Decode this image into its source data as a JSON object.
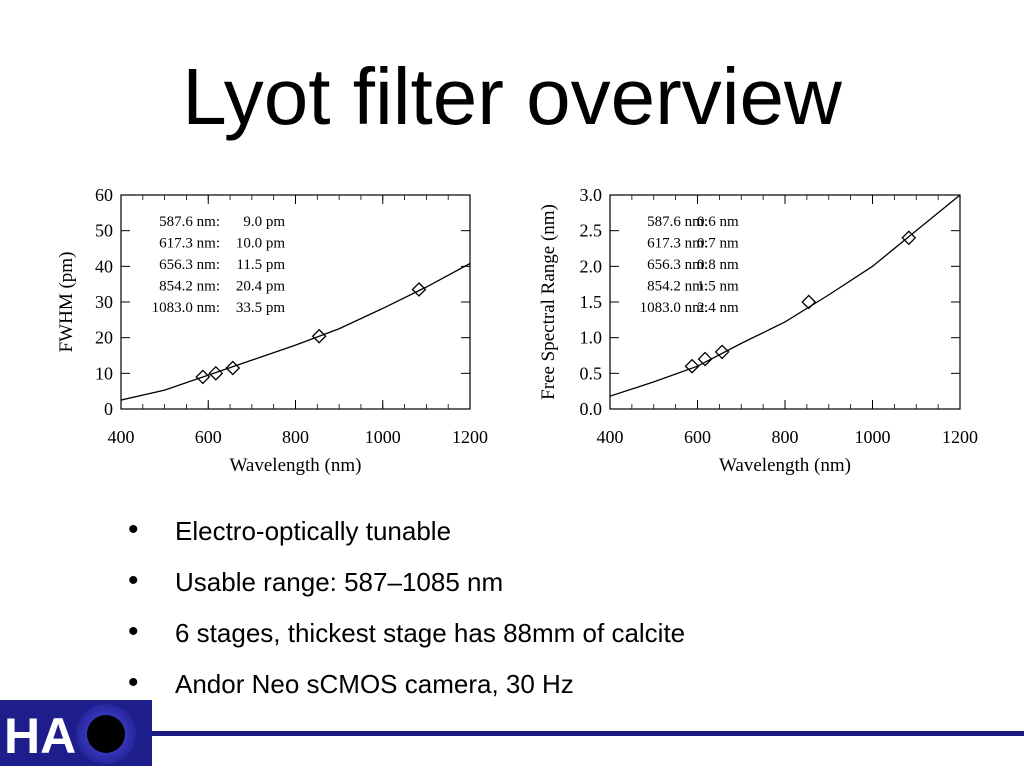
{
  "slide": {
    "title": "Lyot filter overview"
  },
  "bullets": [
    "Electro-optically tunable",
    "Usable range: 587–1085 nm",
    "6 stages, thickest stage has 88mm of calcite",
    "Andor Neo sCMOS camera, 30 Hz"
  ],
  "logo": {
    "text": "HAO",
    "colors": {
      "background": "#1d1d8c",
      "letters": "#ffffff",
      "disk": "#000000",
      "rule": "#1a1a80"
    }
  },
  "chart_data": [
    {
      "type": "scatter",
      "xlabel": "Wavelength (nm)",
      "ylabel": "FWHM (pm)",
      "xlim": [
        400,
        1200
      ],
      "ylim": [
        0,
        60
      ],
      "xticks": [
        400,
        600,
        800,
        1000,
        1200
      ],
      "yticks": [
        0,
        10,
        20,
        30,
        40,
        50,
        60
      ],
      "x": [
        587.6,
        617.3,
        656.3,
        854.2,
        1083.0
      ],
      "y": [
        9.0,
        10.0,
        11.5,
        20.4,
        33.5
      ],
      "marker": "diamond",
      "fit_curve": {
        "x": [
          400,
          500,
          600,
          700,
          800,
          900,
          1000,
          1100,
          1200
        ],
        "y": [
          2.5,
          5.3,
          9.5,
          13.7,
          17.9,
          22.5,
          28.2,
          34.2,
          40.8
        ]
      },
      "annotations": [
        {
          "label": "587.6 nm:",
          "value": "9.0 pm"
        },
        {
          "label": "617.3 nm:",
          "value": "10.0 pm"
        },
        {
          "label": "656.3 nm:",
          "value": "11.5 pm"
        },
        {
          "label": "854.2 nm:",
          "value": "20.4 pm"
        },
        {
          "label": "1083.0 nm:",
          "value": "33.5 pm"
        }
      ],
      "grid": false
    },
    {
      "type": "scatter",
      "xlabel": "Wavelength (nm)",
      "ylabel": "Free Spectral Range (nm)",
      "xlim": [
        400,
        1200
      ],
      "ylim": [
        0,
        3
      ],
      "xticks": [
        400,
        600,
        800,
        1000,
        1200
      ],
      "yticks": [
        0.0,
        0.5,
        1.0,
        1.5,
        2.0,
        2.5,
        3.0
      ],
      "ytick_labels": [
        "0.0",
        "0.5",
        "1.0",
        "1.5",
        "2.0",
        "2.5",
        "3.0"
      ],
      "x": [
        587.6,
        617.3,
        656.3,
        854.2,
        1083.0
      ],
      "y": [
        0.6,
        0.7,
        0.8,
        1.5,
        2.4
      ],
      "marker": "diamond",
      "fit_curve": {
        "x": [
          400,
          500,
          600,
          700,
          800,
          900,
          1000,
          1100,
          1200
        ],
        "y": [
          0.18,
          0.38,
          0.6,
          0.92,
          1.22,
          1.6,
          2.0,
          2.5,
          3.0
        ]
      },
      "annotations": [
        {
          "label": "587.6 nm:",
          "value": "0.6 nm"
        },
        {
          "label": "617.3 nm:",
          "value": "0.7 nm"
        },
        {
          "label": "656.3 nm:",
          "value": "0.8 nm"
        },
        {
          "label": "854.2 nm:",
          "value": "1.5 nm"
        },
        {
          "label": "1083.0 nm:",
          "value": "2.4 nm"
        }
      ],
      "grid": false
    }
  ]
}
